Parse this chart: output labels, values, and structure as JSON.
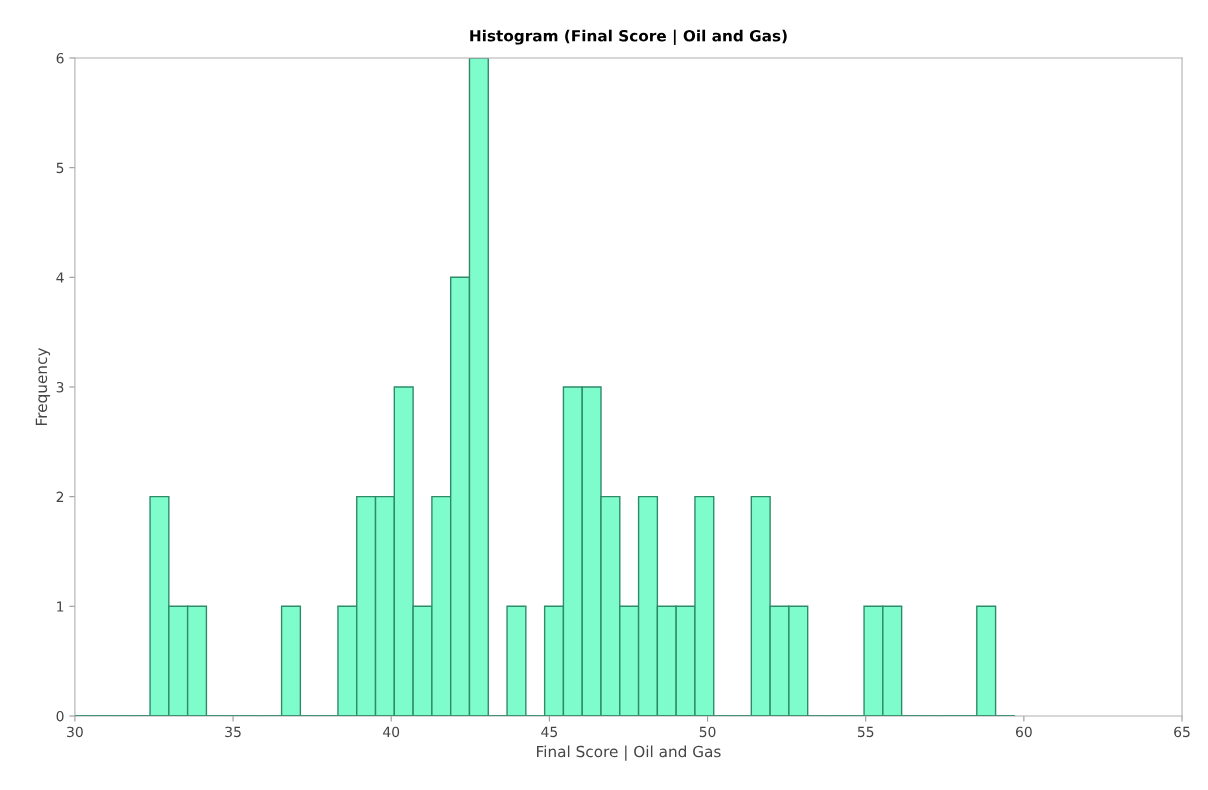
{
  "chart_data": {
    "type": "histogram",
    "title": "Histogram (Final Score | Oil and Gas)",
    "xlabel": "Final Score | Oil and Gas",
    "ylabel": "Frequency",
    "bins": [
      30.0,
      30.594,
      31.188,
      31.782,
      32.376,
      32.97,
      33.564,
      34.158,
      34.752,
      35.346,
      35.94,
      36.534,
      37.128,
      37.722,
      38.316,
      38.91,
      39.504,
      40.098,
      40.692,
      41.286,
      41.88,
      42.474,
      43.068,
      43.662,
      44.256,
      44.85,
      45.444,
      46.038,
      46.632,
      47.226,
      47.82,
      48.414,
      49.008,
      49.602,
      50.196,
      50.79,
      51.384,
      51.978,
      52.572,
      53.166,
      53.76,
      54.354,
      54.948,
      55.542,
      56.136,
      56.73,
      57.324,
      57.918,
      58.512,
      59.106,
      59.7
    ],
    "values": [
      0,
      0,
      0,
      0,
      2,
      1,
      1,
      0,
      0,
      0,
      0,
      1,
      0,
      0,
      1,
      2,
      2,
      3,
      1,
      2,
      4,
      6,
      0,
      1,
      0,
      1,
      3,
      3,
      2,
      1,
      2,
      1,
      1,
      2,
      0,
      0,
      2,
      1,
      1,
      0,
      0,
      0,
      1,
      1,
      0,
      0,
      0,
      0,
      1,
      0
    ],
    "color": "#7ffccc",
    "xlim": [
      30,
      65
    ],
    "xticks": [
      30,
      35,
      40,
      45,
      50,
      55,
      60,
      65
    ],
    "ylim": [
      0,
      6
    ],
    "yticks": [
      0,
      1,
      2,
      3,
      4,
      5,
      6
    ],
    "grid": false
  }
}
